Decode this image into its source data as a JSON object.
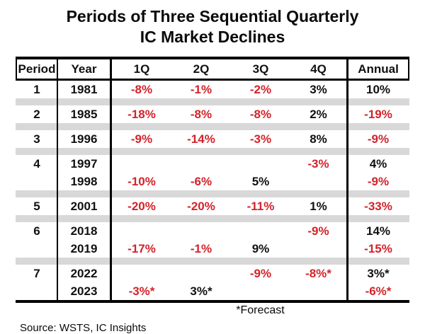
{
  "title": {
    "line1": "Periods of Three Sequential Quarterly",
    "line2": "IC Market Declines"
  },
  "table": {
    "columns": [
      "Period",
      "Year",
      "1Q",
      "2Q",
      "3Q",
      "4Q",
      "Annual"
    ],
    "groups": [
      {
        "period": "1",
        "rows": [
          {
            "year": "1981",
            "values": [
              {
                "t": "-8%",
                "neg": true
              },
              {
                "t": "-1%",
                "neg": true
              },
              {
                "t": "-2%",
                "neg": true
              },
              {
                "t": "3%",
                "neg": false
              },
              {
                "t": "10%",
                "neg": false
              }
            ]
          }
        ]
      },
      {
        "period": "2",
        "rows": [
          {
            "year": "1985",
            "values": [
              {
                "t": "-18%",
                "neg": true
              },
              {
                "t": "-8%",
                "neg": true
              },
              {
                "t": "-8%",
                "neg": true
              },
              {
                "t": "2%",
                "neg": false
              },
              {
                "t": "-19%",
                "neg": true
              }
            ]
          }
        ]
      },
      {
        "period": "3",
        "rows": [
          {
            "year": "1996",
            "values": [
              {
                "t": "-9%",
                "neg": true
              },
              {
                "t": "-14%",
                "neg": true
              },
              {
                "t": "-3%",
                "neg": true
              },
              {
                "t": "8%",
                "neg": false
              },
              {
                "t": "-9%",
                "neg": true
              }
            ]
          }
        ]
      },
      {
        "period": "4",
        "rows": [
          {
            "year": "1997",
            "values": [
              {
                "t": "",
                "neg": false
              },
              {
                "t": "",
                "neg": false
              },
              {
                "t": "",
                "neg": false
              },
              {
                "t": "-3%",
                "neg": true
              },
              {
                "t": "4%",
                "neg": false
              }
            ]
          },
          {
            "year": "1998",
            "values": [
              {
                "t": "-10%",
                "neg": true
              },
              {
                "t": "-6%",
                "neg": true
              },
              {
                "t": "5%",
                "neg": false
              },
              {
                "t": "",
                "neg": false
              },
              {
                "t": "-9%",
                "neg": true
              }
            ]
          }
        ]
      },
      {
        "period": "5",
        "rows": [
          {
            "year": "2001",
            "values": [
              {
                "t": "-20%",
                "neg": true
              },
              {
                "t": "-20%",
                "neg": true
              },
              {
                "t": "-11%",
                "neg": true
              },
              {
                "t": "1%",
                "neg": false
              },
              {
                "t": "-33%",
                "neg": true
              }
            ]
          }
        ]
      },
      {
        "period": "6",
        "rows": [
          {
            "year": "2018",
            "values": [
              {
                "t": "",
                "neg": false
              },
              {
                "t": "",
                "neg": false
              },
              {
                "t": "",
                "neg": false
              },
              {
                "t": "-9%",
                "neg": true
              },
              {
                "t": "14%",
                "neg": false
              }
            ]
          },
          {
            "year": "2019",
            "values": [
              {
                "t": "-17%",
                "neg": true
              },
              {
                "t": "-1%",
                "neg": true
              },
              {
                "t": "9%",
                "neg": false
              },
              {
                "t": "",
                "neg": false
              },
              {
                "t": "-15%",
                "neg": true
              }
            ]
          }
        ]
      },
      {
        "period": "7",
        "rows": [
          {
            "year": "2022",
            "values": [
              {
                "t": "",
                "neg": false
              },
              {
                "t": "",
                "neg": false
              },
              {
                "t": "-9%",
                "neg": true
              },
              {
                "t": "-8%*",
                "neg": true
              },
              {
                "t": "3%*",
                "neg": false
              }
            ]
          },
          {
            "year": "2023",
            "values": [
              {
                "t": "-3%*",
                "neg": true
              },
              {
                "t": "3%*",
                "neg": false
              },
              {
                "t": "",
                "neg": false
              },
              {
                "t": "",
                "neg": false
              },
              {
                "t": "-6%*",
                "neg": true
              }
            ]
          }
        ]
      }
    ]
  },
  "footnote": "*Forecast",
  "source": "Source: WSTS, IC Insights",
  "colors": {
    "negative": "#d2232a",
    "positive": "#111111",
    "separator": "#d8d8d8"
  }
}
